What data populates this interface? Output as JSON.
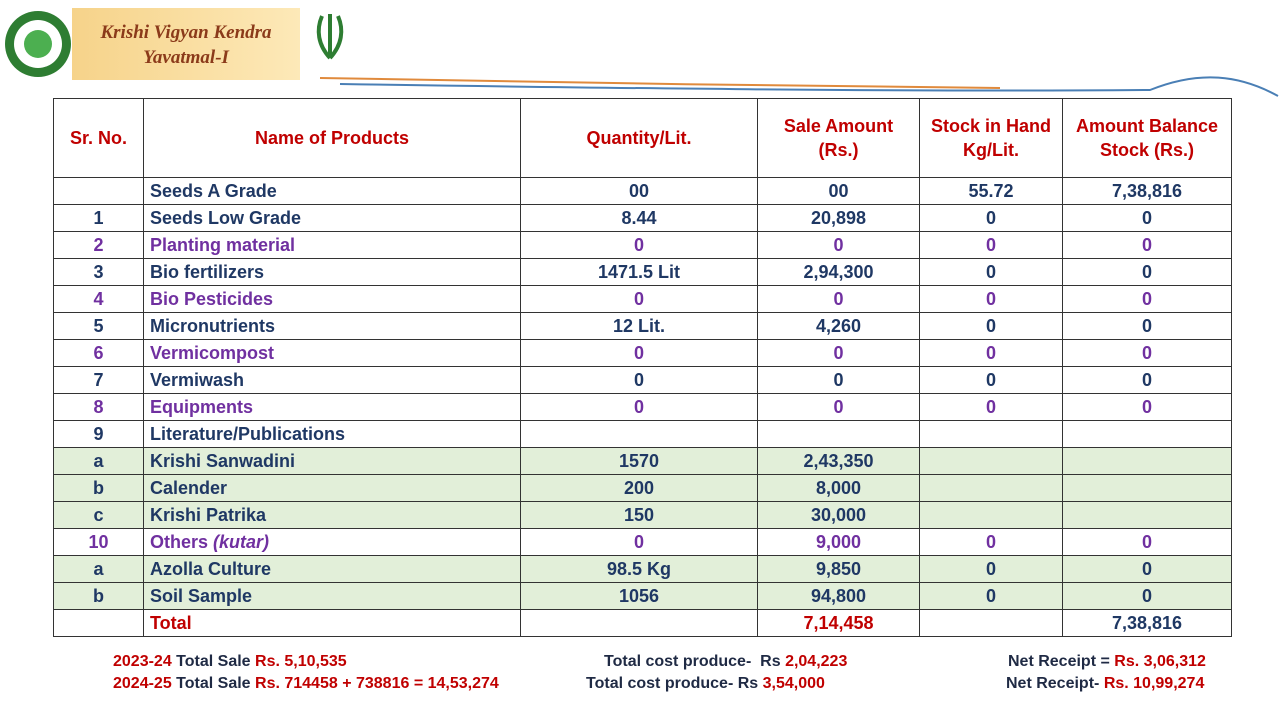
{
  "header": {
    "title_lines": [
      "Krishi Vigyan Kendra",
      "Yavatmal-I"
    ]
  },
  "table": {
    "columns": [
      "Sr. No.",
      "Name of Products",
      "Quantity/Lit.",
      "Sale Amount (Rs.)",
      "Stock in Hand Kg/Lit.",
      "Amount Balance Stock (Rs.)"
    ],
    "rows": [
      [
        null,
        "Seeds  A Grade",
        "00",
        "00",
        "55.72",
        "7,38,816"
      ],
      [
        "1",
        "Seeds  Low Grade",
        "8.44",
        "20,898",
        "0",
        "0"
      ],
      [
        "2",
        "Planting material",
        "0",
        "0",
        "0",
        "0"
      ],
      [
        "3",
        "Bio fertilizers",
        "1471.5 Lit",
        "2,94,300",
        "0",
        "0"
      ],
      [
        "4",
        "Bio Pesticides",
        "0",
        "0",
        "0",
        "0"
      ],
      [
        "5",
        "Micronutrients",
        "12 Lit.",
        "4,260",
        "0",
        "0"
      ],
      [
        "6",
        "Vermicompost",
        "0",
        "0",
        "0",
        "0"
      ],
      [
        "7",
        "Vermiwash",
        "0",
        "0",
        "0",
        "0"
      ],
      [
        "8",
        "Equipments",
        "0",
        "0",
        "0",
        "0"
      ],
      [
        "9",
        "Literature/Publications",
        null,
        null,
        null,
        null
      ],
      [
        "a",
        "Krishi Sanwadini",
        "1570",
        "2,43,350",
        null,
        null
      ],
      [
        "b",
        "Calender",
        "200",
        "8,000",
        null,
        null
      ],
      [
        "c",
        "Krishi Patrika",
        "150",
        "30,000",
        null,
        null
      ],
      [
        "10",
        {
          "text": "Others",
          "note": "(kutar)"
        },
        "0",
        "9,000",
        "0",
        "0"
      ],
      [
        "a",
        "Azolla Culture",
        "98.5 Kg",
        "9,850",
        "0",
        "0"
      ],
      [
        "b",
        "Soil Sample",
        "1056",
        "94,800",
        "0",
        "0"
      ],
      [
        null,
        "Total",
        null,
        "7,14,458",
        null,
        "7,38,816"
      ]
    ]
  },
  "footer": [
    {
      "year": "2023-24",
      "sale_label": "Total Sale",
      "sale_value": "Rs. 5,10,535",
      "cost_label": "Total cost produce-  Rs",
      "cost_value": "2,04,223",
      "net_label": "Net Receipt =",
      "net_value": "Rs. 3,06,312"
    },
    {
      "year": "2024-25",
      "sale_label": "Total Sale",
      "sale_value": "Rs. 714458 + 738816 = 14,53,274",
      "cost_label": "Total cost produce- Rs",
      "cost_value": "3,54,000",
      "net_label": "Net Receipt-",
      "net_value": "Rs. 10,99,274"
    }
  ]
}
